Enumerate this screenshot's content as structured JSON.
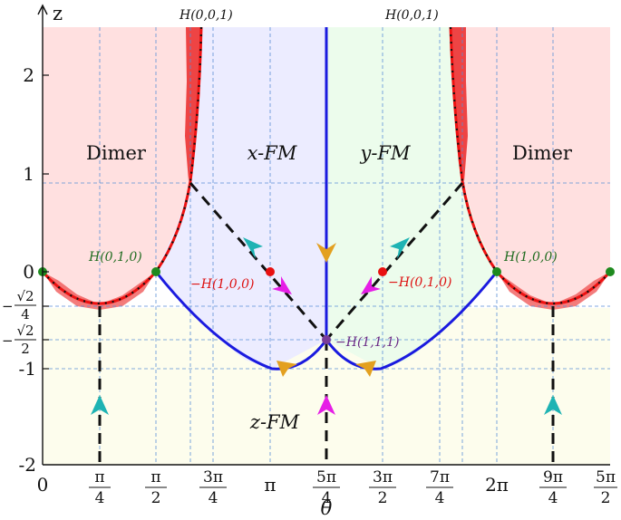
{
  "axes": {
    "y_title": "z",
    "x_title": "θ",
    "y_ticks": [
      {
        "label": "2",
        "value": 2
      },
      {
        "label": "1",
        "value": 1
      },
      {
        "label": "0",
        "value": 0
      },
      {
        "label": "-1",
        "value": -1
      },
      {
        "label": "-2",
        "value": -2
      }
    ],
    "y_frac_ticks": [
      {
        "num": "√2",
        "den": "4",
        "sign": "−",
        "value": -0.3536
      },
      {
        "num": "√2",
        "den": "2",
        "sign": "−",
        "value": -0.7071
      }
    ],
    "x_ticks": [
      {
        "num": "",
        "den": "",
        "label": "0",
        "value": 0
      },
      {
        "num": "π",
        "den": "4",
        "label": "",
        "value": 0.7854
      },
      {
        "num": "π",
        "den": "2",
        "label": "",
        "value": 1.5708
      },
      {
        "num": "3π",
        "den": "4",
        "label": "",
        "value": 2.3562
      },
      {
        "num": "",
        "den": "",
        "label": "π",
        "value": 3.1416
      },
      {
        "num": "5π",
        "den": "4",
        "label": "",
        "value": 3.927
      },
      {
        "num": "3π",
        "den": "2",
        "label": "",
        "value": 4.7124
      },
      {
        "num": "7π",
        "den": "4",
        "label": "",
        "value": 5.4978
      },
      {
        "num": "",
        "den": "",
        "label": "2π",
        "value": 6.2832
      },
      {
        "num": "9π",
        "den": "4",
        "label": "",
        "value": 7.0686
      },
      {
        "num": "5π",
        "den": "2",
        "label": "",
        "value": 7.854
      }
    ]
  },
  "regions": {
    "dimer_left": "Dimer",
    "x_fm": "x-FM",
    "y_fm": "y-FM",
    "dimer_right": "Dimer",
    "z_fm": "z-FM"
  },
  "labels": {
    "h001_left": "H(0,0,1)",
    "h001_right": "H(0,0,1)",
    "h010": "H(0,1,0)",
    "h100": "H(1,0,0)",
    "neg_h100": "−H(1,0,0)",
    "neg_h010": "−H(0,1,0)",
    "neg_h111": "−H(1,1,1)"
  },
  "colors": {
    "dimer_fill": "#ffe0e0",
    "xfm_fill": "#ececff",
    "yfm_fill": "#ecfcec",
    "zfm_fill": "#fdfded",
    "red_line": "#ee1111",
    "blue_line": "#1a1adf",
    "grid": "#5a8fd6",
    "green_point": "#1e8a1e",
    "red_point": "#e81010",
    "purple_point": "#7a3d9a",
    "cyan_arrow": "#1eb3b3",
    "orange_arrow": "#e3a020",
    "magenta_arrow": "#e61ee6"
  }
}
